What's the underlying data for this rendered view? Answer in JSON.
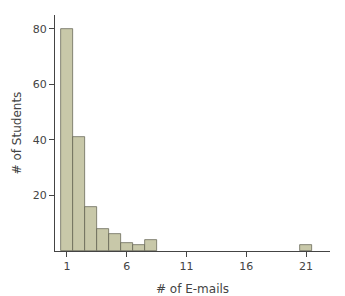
{
  "chart_data": {
    "type": "bar",
    "x": [
      1,
      2,
      3,
      4,
      5,
      6,
      7,
      8,
      21
    ],
    "values": [
      80,
      41,
      16,
      8,
      6,
      3,
      2,
      4,
      2
    ],
    "color": "#c8c8a9",
    "xlabel": "# of E-mails",
    "ylabel": "# of Students",
    "xlim": [
      0,
      23
    ],
    "ylim": [
      0,
      85
    ],
    "xticks": [
      1,
      6,
      11,
      16,
      21
    ],
    "yticks": [
      20,
      40,
      60,
      80
    ],
    "grid": false
  }
}
